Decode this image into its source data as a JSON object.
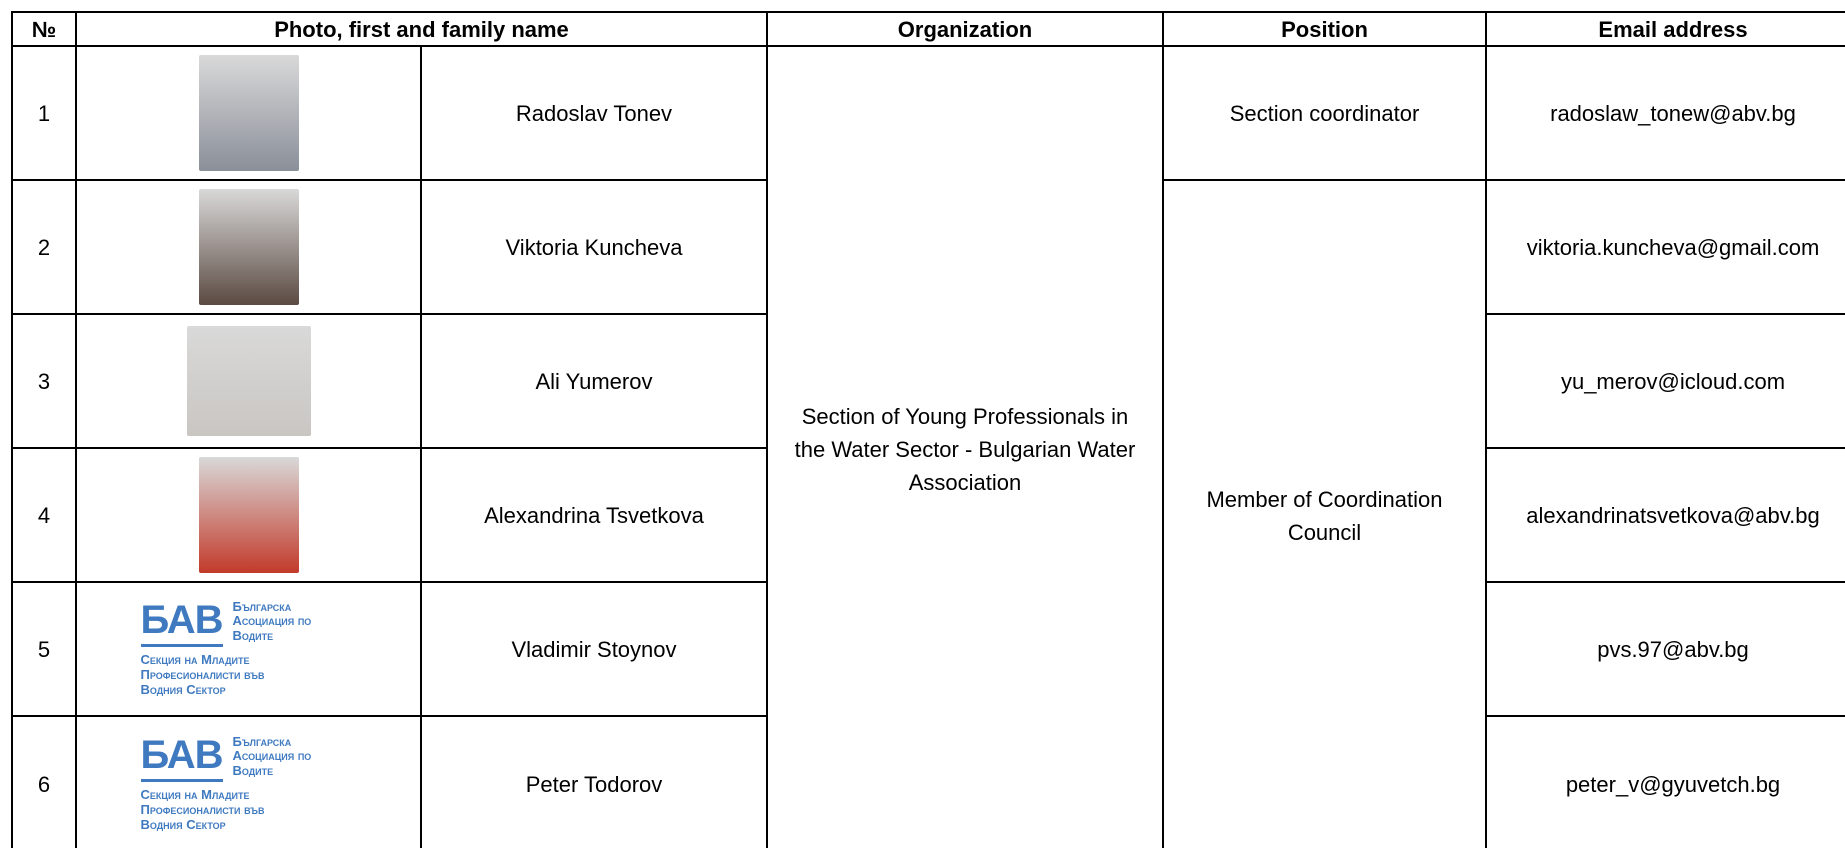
{
  "table": {
    "headers": [
      "№",
      "Photo, first and family name",
      "Organization",
      "Position",
      "Email address"
    ],
    "rows": [
      {
        "number": "1",
        "name": "Radoslav Tonev",
        "email": "radoslaw_tonew@abv.bg"
      },
      {
        "number": "2",
        "name": "Viktoria Kuncheva",
        "email": "viktoria.kuncheva@gmail.com"
      },
      {
        "number": "3",
        "name": "Ali Yumerov",
        "email": "yu_merov@icloud.com"
      },
      {
        "number": "4",
        "name": "Alexandrina Tsvetkova",
        "email": "alexandrinatsvetkova@abv.bg"
      },
      {
        "number": "5",
        "name": "Vladimir Stoynov",
        "email": "pvs.97@abv.bg"
      },
      {
        "number": "6",
        "name": "Peter Todorov",
        "email": "peter_v@gyuvetch.bg"
      }
    ],
    "organization": "Section of Young Professionals in the Water Sector - Bulgarian Water Association",
    "positions": [
      "Section coordinator",
      "Member of Coordination Council"
    ]
  },
  "logo": {
    "abbr": "БАВ",
    "lines": [
      "Българска",
      "Асоциация по",
      "Водите"
    ],
    "sub": [
      "Секция на Младите",
      "Професионалисти във",
      "Водния Сектор"
    ]
  }
}
